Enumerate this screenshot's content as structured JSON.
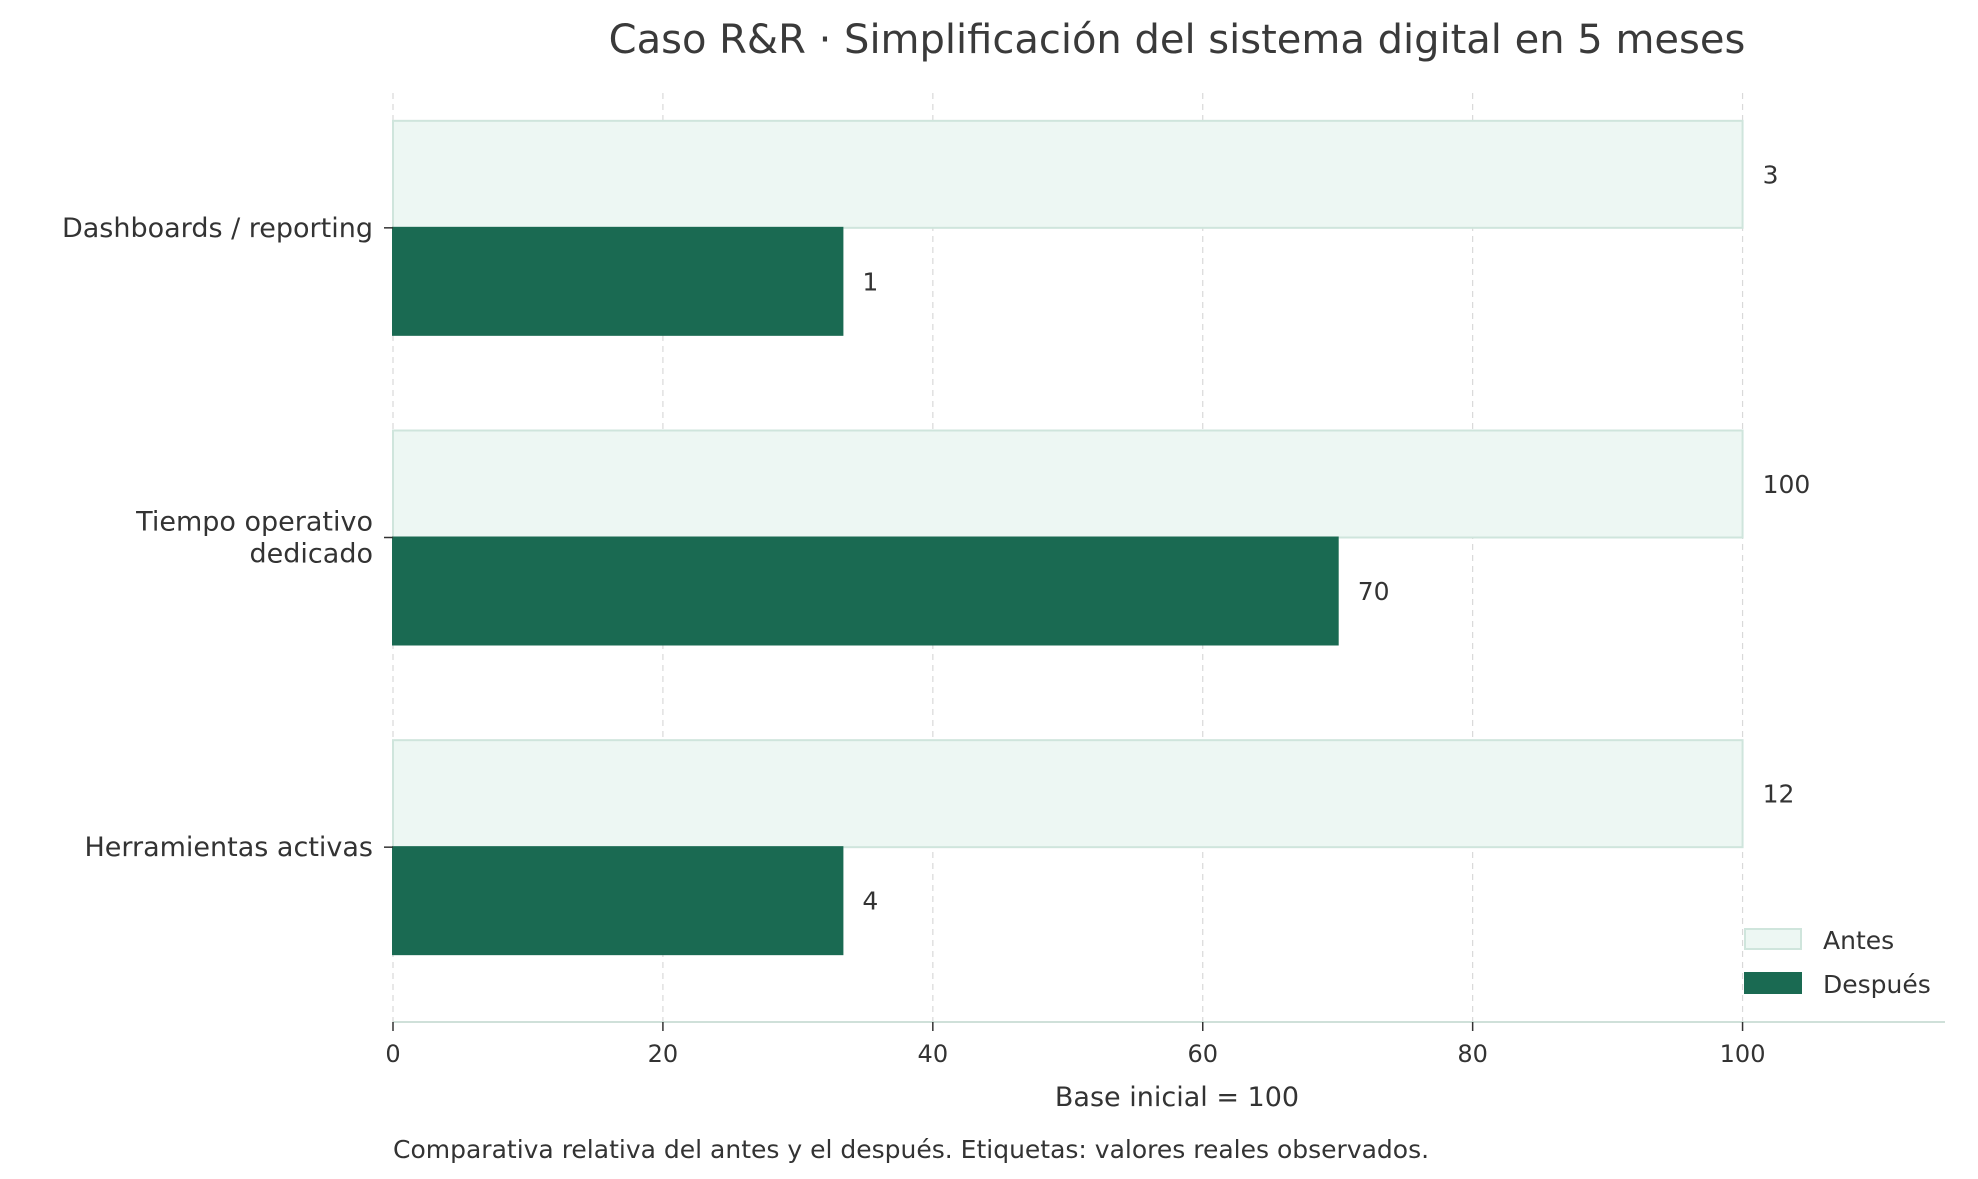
{
  "chart_data": {
    "type": "bar",
    "orientation": "horizontal",
    "title": "Caso R&R · Simplificación del sistema digital en 5 meses",
    "xlabel": "Base inicial = 100",
    "ylabel": "",
    "footnote": "Comparativa relativa del antes y el después. Etiquetas: valores reales observados.",
    "categories": [
      [
        "Dashboards / reporting"
      ],
      [
        "Tiempo operativo",
        "dedicado"
      ],
      [
        "Herramientas activas"
      ]
    ],
    "series": [
      {
        "name": "Antes",
        "values": [
          100,
          100,
          100
        ],
        "labels": [
          "3",
          "100",
          "12"
        ],
        "color": "#edf7f3",
        "edge": "#cfe5dc"
      },
      {
        "name": "Después",
        "values": [
          33.3,
          70,
          33.3
        ],
        "labels": [
          "1",
          "70",
          "4"
        ],
        "color": "#1a6a52",
        "edge": "#1a6a52"
      }
    ],
    "xlim": [
      0,
      115
    ],
    "xticks": [
      0,
      20,
      40,
      60,
      80,
      100
    ],
    "grid": "x",
    "legend": "bottom-right"
  }
}
